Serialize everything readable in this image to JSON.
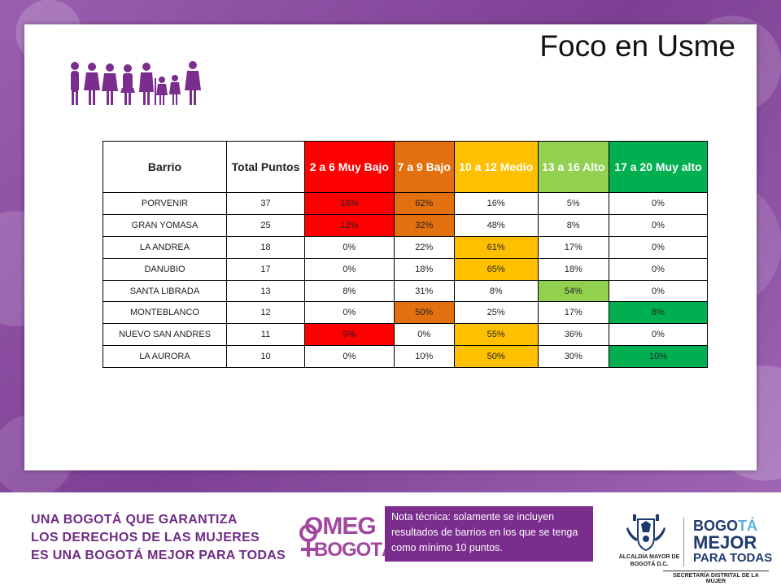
{
  "header": {
    "title": "Foco en Usme"
  },
  "table": {
    "columns": [
      "Barrio",
      "Total Puntos",
      "2 a 6 Muy Bajo",
      "7 a 9 Bajo",
      "10 a 12 Medio",
      "13 a 16 Alto",
      "17 a 20 Muy alto"
    ],
    "rows": [
      {
        "barrio": "PORVENIR",
        "total": "37",
        "v": [
          "16%",
          "62%",
          "16%",
          "5%",
          "0%"
        ],
        "hl": [
          "muybajo",
          "bajo",
          "",
          "",
          ""
        ]
      },
      {
        "barrio": "GRAN YOMASA",
        "total": "25",
        "v": [
          "12%",
          "32%",
          "48%",
          "8%",
          "0%"
        ],
        "hl": [
          "muybajo",
          "bajo",
          "",
          "",
          ""
        ]
      },
      {
        "barrio": "LA ANDREA",
        "total": "18",
        "v": [
          "0%",
          "22%",
          "61%",
          "17%",
          "0%"
        ],
        "hl": [
          "",
          "",
          "medio",
          "",
          ""
        ]
      },
      {
        "barrio": "DANUBIO",
        "total": "17",
        "v": [
          "0%",
          "18%",
          "65%",
          "18%",
          "0%"
        ],
        "hl": [
          "",
          "",
          "medio",
          "",
          ""
        ]
      },
      {
        "barrio": "SANTA LIBRADA",
        "total": "13",
        "v": [
          "8%",
          "31%",
          "8%",
          "54%",
          "0%"
        ],
        "hl": [
          "",
          "",
          "",
          "alto",
          ""
        ]
      },
      {
        "barrio": "MONTEBLANCO",
        "total": "12",
        "v": [
          "0%",
          "50%",
          "25%",
          "17%",
          "8%"
        ],
        "hl": [
          "",
          "bajo",
          "",
          "",
          "muyalto"
        ]
      },
      {
        "barrio": "NUEVO SAN ANDRES",
        "total": "11",
        "v": [
          "9%",
          "0%",
          "55%",
          "36%",
          "0%"
        ],
        "hl": [
          "muybajo",
          "",
          "medio",
          "",
          ""
        ]
      },
      {
        "barrio": "LA AURORA",
        "total": "10",
        "v": [
          "0%",
          "10%",
          "50%",
          "30%",
          "10%"
        ],
        "hl": [
          "",
          "",
          "medio",
          "",
          "muyalto"
        ]
      }
    ]
  },
  "colors": {
    "muy_bajo": "#ff0000",
    "bajo": "#e2700e",
    "medio": "#ffc000",
    "alto": "#92d050",
    "muy_alto": "#00b050",
    "brand_purple": "#7b2d8e"
  },
  "footer": {
    "slogan": [
      "UNA BOGOTÁ QUE GARANTIZA",
      "LOS DERECHOS DE LAS MUJERES",
      "ES UNA BOGOTÁ MEJOR PARA TODAS"
    ],
    "omeg_line1": "OMEG",
    "omeg_line2": "BOGOTÁ",
    "note": "Nota técnica: solamente se incluyen resultados de barrios en los que se tenga como mínimo 10 puntos.",
    "alcaldia": "ALCALDÍA MAYOR DE BOGOTÁ D.C.",
    "bmpt_line1_a": "BOGO",
    "bmpt_line1_b": "TÁ",
    "bmpt_line2": "MEJOR",
    "bmpt_line3": "PARA TODAS",
    "secretaria": "SECRETARÍA DISTRITAL DE LA MUJER",
    "icons": [
      "women-figures-icon",
      "venus-icon",
      "city-crest-icon"
    ]
  }
}
